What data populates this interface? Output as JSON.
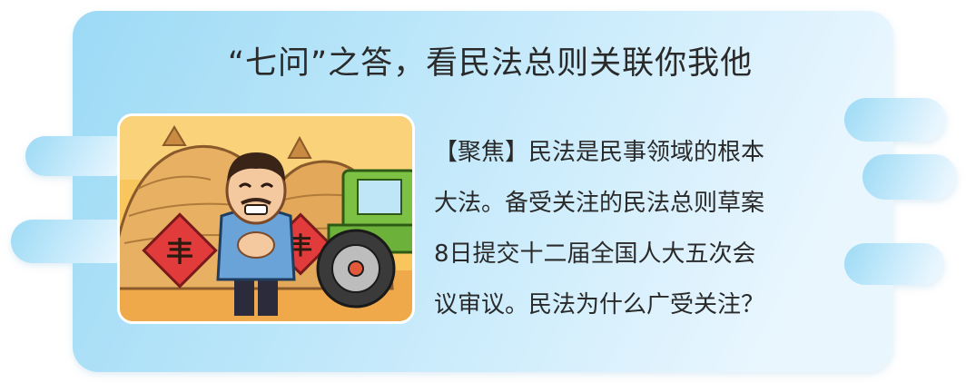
{
  "header": {
    "title": "“七问”之答，看民法总则关联你我他"
  },
  "illustration": {
    "sign_left": "丰",
    "sign_right": "丰",
    "icon": "farmer-with-haystacks-and-tractor"
  },
  "article": {
    "lines": [
      "【聚焦】民法是民事领域的根本",
      "大法。备受关注的民法总则草案",
      "8日提交十二届全国人大五次会",
      "议审议。民法为什么广受关注？"
    ]
  },
  "colors": {
    "panel_gradient_start": "#9fdcf5",
    "panel_gradient_end": "#e6f5fd",
    "illustration_bg": "#f7c25a",
    "tractor": "#7cc144",
    "sign_red": "#e23b3b"
  }
}
